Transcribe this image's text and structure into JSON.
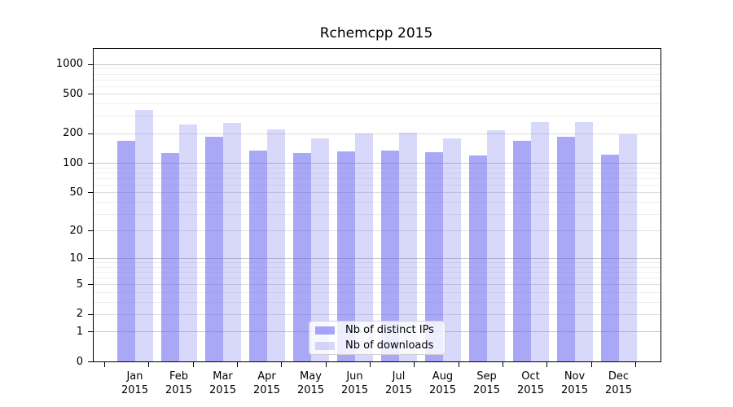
{
  "chart_data": {
    "type": "bar",
    "title": "Rchemcpp 2015",
    "scale": "log10(1+x)",
    "ylim": [
      0,
      1500
    ],
    "y_ticks": [
      0,
      1,
      2,
      5,
      10,
      20,
      50,
      100,
      200,
      500,
      1000
    ],
    "grid": true,
    "legend_position": "inside-bottom-center",
    "year": "2015",
    "categories": [
      "Jan",
      "Feb",
      "Mar",
      "Apr",
      "May",
      "Jun",
      "Jul",
      "Aug",
      "Sep",
      "Oct",
      "Nov",
      "Dec"
    ],
    "series": [
      {
        "name": "Nb of distinct IPs",
        "color": "rgba(100,100,240,0.56)",
        "values": [
          168,
          125,
          183,
          134,
          125,
          132,
          134,
          129,
          120,
          167,
          186,
          122
        ]
      },
      {
        "name": "Nb of downloads",
        "color": "rgba(100,100,240,0.25)",
        "values": [
          346,
          247,
          255,
          220,
          178,
          200,
          204,
          178,
          215,
          262,
          261,
          196
        ]
      }
    ]
  }
}
